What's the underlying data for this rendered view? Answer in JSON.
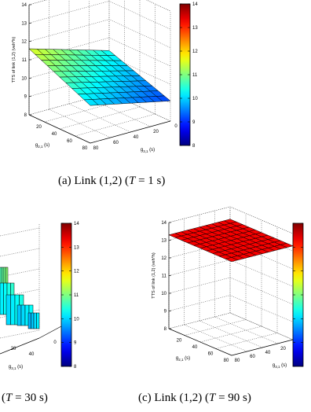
{
  "chart_data": [
    {
      "type": "surface",
      "panel": "a",
      "zlabel": "TTS of link (1,2) (veh*h)",
      "xlabel": "g",
      "xlabel_sub": "2,1",
      "xlabel_unit": " (s)",
      "ylabel": "g",
      "ylabel_sub": "3,1",
      "ylabel_unit": " (s)",
      "x_ticks": [
        "20",
        "40",
        "60",
        "80"
      ],
      "y_ticks": [
        "0",
        "20",
        "40",
        "60",
        "80"
      ],
      "z_ticks": [
        "8",
        "9",
        "10",
        "11",
        "12",
        "13",
        "14"
      ],
      "zlim": [
        8,
        14
      ],
      "colorbar_ticks": [
        "8",
        "9",
        "10",
        "11",
        "12",
        "13",
        "14"
      ],
      "colorbar_range": [
        8,
        14
      ],
      "colormap": "jet",
      "surface_summary": {
        "corner_high_z": 11.6,
        "corner_low_z": 9.1,
        "shape": "planar tilt with slight curvature"
      },
      "caption": "(a) Link (1,2) (T = 1 s)",
      "caption_parts": [
        "(a)  Link (1,2) (",
        "T",
        " = 1 s)"
      ]
    },
    {
      "type": "surface",
      "panel": "b",
      "colorbar_ticks": [
        "8",
        "9",
        "10",
        "11",
        "12",
        "13",
        "14"
      ],
      "colorbar_range": [
        8,
        14
      ],
      "colormap": "jet",
      "y_ticks_visible": [
        "0"
      ],
      "ylabel": "g",
      "ylabel_sub": "3,1",
      "ylabel_unit": " (s)",
      "x_ticks_visible": [
        "20",
        "40",
        "60",
        "80"
      ],
      "caption_visible": "(T = 30 s)",
      "caption_parts": [
        "(",
        "T",
        " = 30 s)"
      ]
    },
    {
      "type": "surface",
      "panel": "c",
      "zlabel": "TTS of link (1,2) (veh*h)",
      "xlabel": "g",
      "xlabel_sub": "2,1",
      "xlabel_unit": " (s)",
      "ylabel": "g",
      "ylabel_sub": "3,1",
      "ylabel_unit": " (s)",
      "x_ticks": [
        "20",
        "40",
        "60",
        "80"
      ],
      "y_ticks": [
        "0",
        "20",
        "40",
        "60",
        "80"
      ],
      "z_ticks": [
        "8",
        "9",
        "10",
        "11",
        "12",
        "13",
        "14"
      ],
      "zlim": [
        8,
        14
      ],
      "colorbar_ticks": [
        "8",
        "9",
        "10",
        "11",
        "12",
        "13",
        "14"
      ],
      "colorbar_range": [
        8,
        14
      ],
      "colormap": "jet",
      "surface_summary": {
        "z": 13.3,
        "shape": "flat"
      },
      "caption": "(c) Link (1,2) (T = 90 s)",
      "caption_parts": [
        "(c)  Link (1,2) (",
        "T",
        " = 90 s)"
      ]
    }
  ]
}
